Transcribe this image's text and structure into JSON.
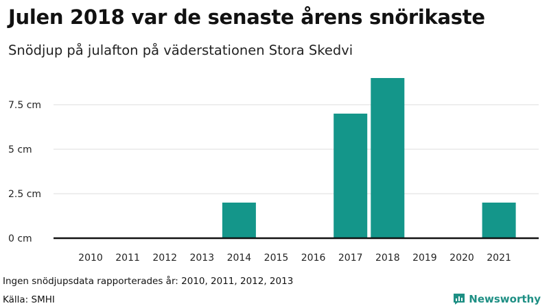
{
  "header": {
    "title": "Julen 2018 var de senaste årens snörikaste",
    "subtitle": "Snödjup på julafton på väderstationen Stora Skedvi"
  },
  "footer": {
    "note": "Ingen snödjupsdata rapporterades år: 2010, 2011, 2012, 2013",
    "source": "Källa: SMHI",
    "brand_name": "Newsworthy",
    "brand_icon": "chart-logo-icon"
  },
  "colors": {
    "bar": "#14968a",
    "grid": "#dddddd",
    "baseline": "#111111",
    "brand": "#1e8f84"
  },
  "chart_data": {
    "type": "bar",
    "title": "Julen 2018 var de senaste årens snörikaste",
    "subtitle": "Snödjup på julafton på väderstationen Stora Skedvi",
    "xlabel": "",
    "ylabel": "",
    "categories": [
      "2010",
      "2011",
      "2012",
      "2013",
      "2014",
      "2015",
      "2016",
      "2017",
      "2018",
      "2019",
      "2020",
      "2021"
    ],
    "values": [
      0,
      0,
      0,
      0,
      2,
      0,
      0,
      7,
      9,
      0,
      0,
      2
    ],
    "ylim": [
      0,
      10
    ],
    "yticks": [
      0,
      2.5,
      5,
      7.5
    ],
    "ytick_labels": [
      "0 cm",
      "2.5 cm",
      "5 cm",
      "7.5 cm"
    ],
    "grid": true,
    "legend": "none"
  }
}
